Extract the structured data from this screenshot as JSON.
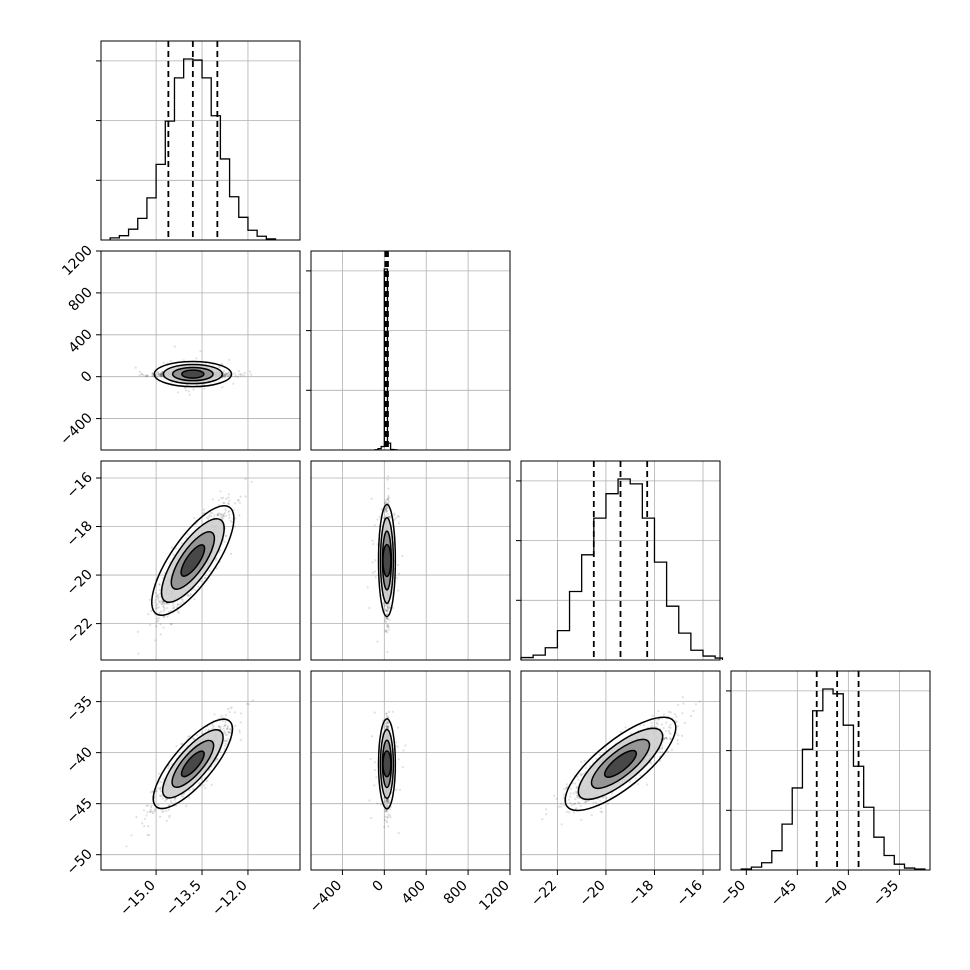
{
  "chart_data": {
    "type": "scatter",
    "kind": "corner-plot",
    "n_params": 4,
    "grid": true,
    "colors": {
      "line": "#000000",
      "grid": "#b0b0b0",
      "points": "#000000"
    },
    "params": [
      {
        "range": [
          -16.8,
          -10.3
        ],
        "ticks": [
          -15.0,
          -13.5,
          -12.0
        ],
        "tick_labels": [
          "−15.0",
          "−13.5",
          "−12.0"
        ],
        "quantiles": [
          -14.6,
          -13.8,
          -13.0
        ],
        "mean": -13.8,
        "sd": 0.6
      },
      {
        "range": [
          -700,
          1200
        ],
        "ticks": [
          -400,
          0,
          400,
          800,
          1200
        ],
        "tick_labels": [
          "−400",
          "0",
          "400",
          "800",
          "1200"
        ],
        "quantiles": [
          10,
          25,
          35
        ],
        "mean": 25,
        "sd": 25
      },
      {
        "range": [
          -23.5,
          -15.3
        ],
        "ticks": [
          -22,
          -20,
          -18,
          -16
        ],
        "tick_labels": [
          "−22",
          "−20",
          "−18",
          "−16"
        ],
        "quantiles": [
          -20.5,
          -19.4,
          -18.3
        ],
        "mean": -19.4,
        "sd": 1.1
      },
      {
        "range": [
          -51.5,
          -32.0
        ],
        "ticks": [
          -50,
          -45,
          -40,
          -35
        ],
        "tick_labels": [
          "−50",
          "−45",
          "−40",
          "−35"
        ],
        "quantiles": [
          -43.1,
          -41.1,
          -39.0
        ],
        "mean": -41.1,
        "sd": 2.1
      }
    ],
    "correlations": [
      [
        0,
        0.9,
        0.8
      ],
      [
        0.9,
        0,
        0.8
      ],
      [
        0.8,
        0.8,
        0
      ]
    ],
    "histograms": [
      {
        "bins": [
          -16.5,
          -16.2,
          -15.9,
          -15.6,
          -15.3,
          -15.0,
          -14.7,
          -14.4,
          -14.1,
          -13.8,
          -13.5,
          -13.2,
          -12.9,
          -12.6,
          -12.3,
          -12.0,
          -11.7,
          -11.4,
          -11.1
        ],
        "counts": [
          4,
          8,
          20,
          40,
          78,
          140,
          220,
          300,
          335,
          333,
          300,
          230,
          150,
          80,
          42,
          18,
          7,
          2
        ]
      },
      {
        "bins": [
          -90,
          -60,
          -30,
          0,
          30,
          60,
          90,
          120
        ],
        "counts": [
          1,
          8,
          20,
          1050,
          40,
          3,
          1
        ]
      },
      {
        "bins": [
          -23.5,
          -23.0,
          -22.5,
          -22.0,
          -21.5,
          -21.0,
          -20.5,
          -20.0,
          -19.5,
          -19.0,
          -18.5,
          -18.0,
          -17.5,
          -17.0,
          -16.5,
          -16.0,
          -15.5,
          -15.2
        ],
        "counts": [
          5,
          10,
          25,
          60,
          140,
          215,
          290,
          340,
          370,
          360,
          290,
          200,
          110,
          55,
          20,
          8,
          4
        ]
      },
      {
        "bins": [
          -50.5,
          -49.5,
          -48.5,
          -47.5,
          -46.5,
          -45.5,
          -44.5,
          -43.5,
          -42.5,
          -41.5,
          -40.5,
          -39.5,
          -38.5,
          -37.5,
          -36.5,
          -35.5,
          -34.5,
          -33.5,
          -32.5
        ],
        "counts": [
          2,
          6,
          15,
          40,
          95,
          170,
          250,
          330,
          375,
          365,
          300,
          215,
          130,
          68,
          30,
          12,
          4,
          2
        ]
      }
    ]
  }
}
